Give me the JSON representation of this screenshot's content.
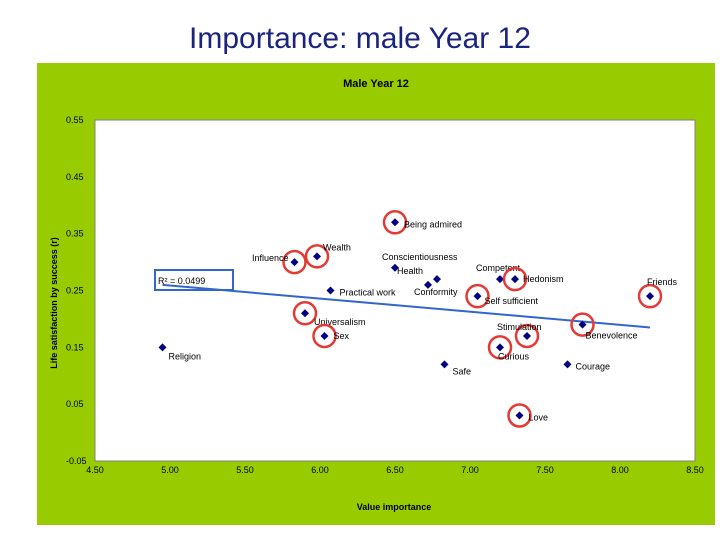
{
  "slide": {
    "title": "Importance: male Year 12"
  },
  "colors": {
    "frame": "#99cc00",
    "plot_bg": "#ffffff",
    "marker": "#000080",
    "trendline": "#3366cc",
    "circle": "#e53935",
    "r2_box": "#3366cc"
  },
  "chart_data": {
    "type": "scatter",
    "title": "Male Year 12",
    "xlabel": "Value importance",
    "ylabel": "Life satisfaction by success (r)",
    "xlim": [
      4.5,
      8.5
    ],
    "ylim": [
      -0.05,
      0.55
    ],
    "x_ticks": [
      "4.50",
      "5.00",
      "5.50",
      "6.00",
      "6.50",
      "7.00",
      "7.50",
      "8.00",
      "8.50"
    ],
    "y_ticks": [
      "0.55",
      "0.45",
      "0.35",
      "0.25",
      "0.15",
      "0.05",
      "-0.05"
    ],
    "grid": false,
    "legend": "none",
    "r2_label": "R² = 0.0499",
    "trendline": {
      "x": [
        4.95,
        8.2
      ],
      "y": [
        0.26,
        0.185
      ]
    },
    "points": [
      {
        "label": "Religion",
        "x": 4.95,
        "y": 0.15,
        "circled": false
      },
      {
        "label": "Influence",
        "x": 5.83,
        "y": 0.3,
        "circled": true
      },
      {
        "label": "Wealth",
        "x": 5.98,
        "y": 0.31,
        "circled": true
      },
      {
        "label": "Practical work",
        "x": 6.07,
        "y": 0.25,
        "circled": false
      },
      {
        "label": "Universalism",
        "x": 5.9,
        "y": 0.21,
        "circled": true
      },
      {
        "label": "Sex",
        "x": 6.03,
        "y": 0.17,
        "circled": true
      },
      {
        "label": "Being admired",
        "x": 6.5,
        "y": 0.37,
        "circled": true
      },
      {
        "label": "Conscientiousness",
        "x": 6.5,
        "y": 0.29,
        "circled": false
      },
      {
        "label": "Health",
        "x": 6.78,
        "y": 0.27,
        "circled": false
      },
      {
        "label": "Conformity",
        "x": 6.72,
        "y": 0.26,
        "circled": false
      },
      {
        "label": "Safe",
        "x": 6.83,
        "y": 0.12,
        "circled": false
      },
      {
        "label": "Competent",
        "x": 7.2,
        "y": 0.27,
        "circled": false
      },
      {
        "label": "Hedonism",
        "x": 7.3,
        "y": 0.27,
        "circled": true
      },
      {
        "label": "Self sufficient",
        "x": 7.05,
        "y": 0.24,
        "circled": true
      },
      {
        "label": "Stimulation",
        "x": 7.38,
        "y": 0.17,
        "circled": true
      },
      {
        "label": "Curious",
        "x": 7.2,
        "y": 0.15,
        "circled": true
      },
      {
        "label": "Love",
        "x": 7.33,
        "y": 0.03,
        "circled": true
      },
      {
        "label": "Benevolence",
        "x": 7.75,
        "y": 0.19,
        "circled": true
      },
      {
        "label": "Courage",
        "x": 7.65,
        "y": 0.12,
        "circled": false
      },
      {
        "label": "Friends",
        "x": 8.2,
        "y": 0.24,
        "circled": true
      }
    ]
  }
}
